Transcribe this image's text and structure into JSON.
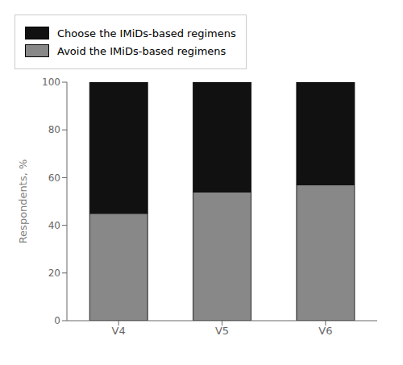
{
  "chart_data": {
    "type": "bar",
    "stacked": true,
    "categories": [
      "V4",
      "V5",
      "V6"
    ],
    "series": [
      {
        "name": "Avoid the IMiDs-based regimens",
        "color": "#888888",
        "values": [
          45,
          54,
          57
        ]
      },
      {
        "name": "Choose the IMiDs-based regimens",
        "color": "#111111",
        "values": [
          55,
          46,
          43
        ]
      }
    ],
    "ylabel": "Respondents, %",
    "ylim": [
      0,
      100
    ],
    "yticks": [
      0,
      20,
      40,
      60,
      80,
      100
    ],
    "grid": false,
    "legend": "upper right"
  }
}
